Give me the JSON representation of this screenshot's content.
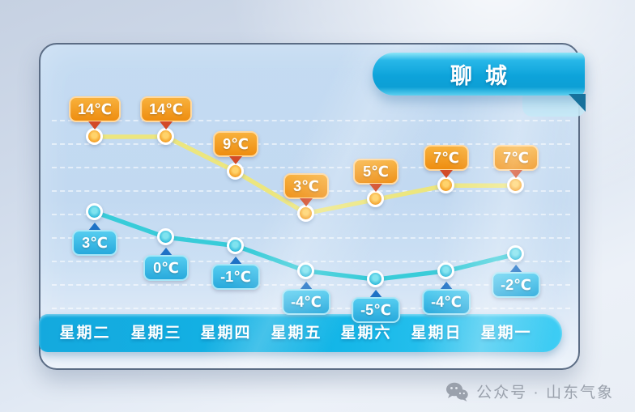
{
  "title": "聊城",
  "chart_data": {
    "type": "line",
    "categories": [
      "星期二",
      "星期三",
      "星期四",
      "星期五",
      "星期六",
      "星期日",
      "星期一"
    ],
    "unit": "℃",
    "series": [
      {
        "name": "high",
        "values": [
          14,
          14,
          9,
          3,
          5,
          7,
          7
        ],
        "labels": [
          "14℃",
          "14℃",
          "9℃",
          "3℃",
          "5℃",
          "7℃",
          "7℃"
        ],
        "line_color": "#ece67f",
        "marker_color": "#f29a1e",
        "marker_center": "#ffd36b",
        "badge_color_top": "#f8b13c",
        "badge_color_bottom": "#ee8d10",
        "badge_border": "#ffd9a0",
        "arrow_color": "#d24a28"
      },
      {
        "name": "low",
        "values": [
          3,
          0,
          -1,
          -4,
          -5,
          -4,
          -2
        ],
        "labels": [
          "3℃",
          "0℃",
          "-1℃",
          "-4℃",
          "-5℃",
          "-4℃",
          "-2℃"
        ],
        "line_color": "#38ccd9",
        "marker_color": "#2ab7d9",
        "marker_center": "#7fe3ef",
        "badge_color_top": "#55cdf0",
        "badge_color_bottom": "#28a9dc",
        "badge_border": "#a8e6f7",
        "arrow_color": "#1e72c6"
      }
    ],
    "grid": "horizontal-dashed-white",
    "legend": "none",
    "xlabel": "",
    "ylabel": ""
  },
  "watermark": {
    "icon": "wechat-icon",
    "label": "公众号 · 山东气象"
  }
}
